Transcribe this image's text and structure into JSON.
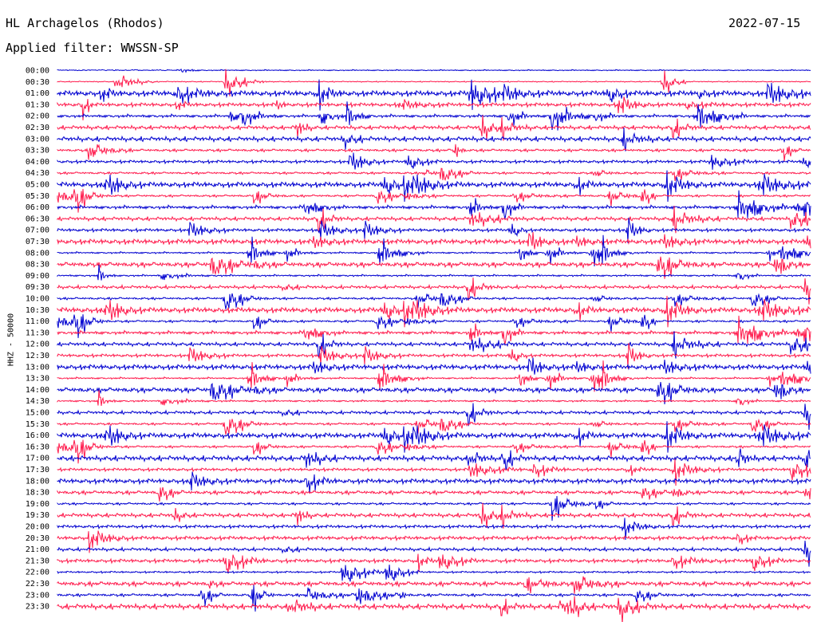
{
  "header": {
    "station": "HL Archagelos (Rhodos)",
    "date": "2022-07-15",
    "filter": "Applied filter: WWSSN-SP"
  },
  "colors": {
    "even_trace": "#0000d0",
    "odd_trace": "#ff1a4c",
    "text": "#000000"
  },
  "chart_data": {
    "type": "line",
    "subtype": "helicorder",
    "ylabel": "HHZ - 50000",
    "row_labels": [
      "00:00",
      "00:30",
      "01:00",
      "01:30",
      "02:00",
      "02:30",
      "03:00",
      "03:30",
      "04:00",
      "04:30",
      "05:00",
      "05:30",
      "06:00",
      "06:30",
      "07:00",
      "07:30",
      "08:00",
      "08:30",
      "09:00",
      "09:30",
      "10:00",
      "10:30",
      "11:00",
      "11:30",
      "12:00",
      "12:30",
      "13:00",
      "13:30",
      "14:00",
      "14:30",
      "15:00",
      "15:30",
      "16:00",
      "16:30",
      "17:00",
      "17:30",
      "18:00",
      "18:30",
      "19:00",
      "19:30",
      "20:00",
      "20:30",
      "21:00",
      "21:30",
      "22:00",
      "22:30",
      "23:00",
      "23:30"
    ],
    "trace_colors": [
      "blue",
      "red"
    ],
    "grid": false,
    "legend": "none"
  }
}
